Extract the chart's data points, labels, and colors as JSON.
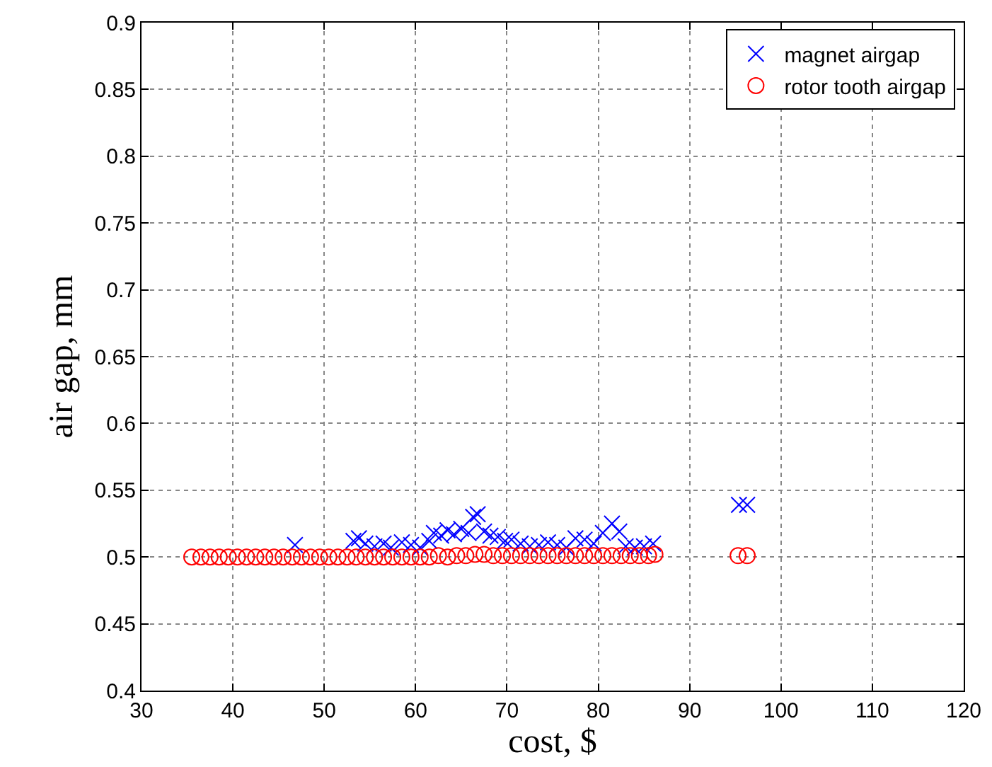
{
  "chart_data": {
    "type": "scatter",
    "xlabel": "cost, $",
    "ylabel": "air gap, mm",
    "xlim": [
      30,
      120
    ],
    "xticks": [
      30,
      40,
      50,
      60,
      70,
      80,
      90,
      100,
      110,
      120
    ],
    "ylim": [
      0.4,
      0.9
    ],
    "yticks": [
      0.4,
      0.45,
      0.5,
      0.55,
      0.6,
      0.65,
      0.7,
      0.75,
      0.8,
      0.85,
      0.9
    ],
    "grid": true,
    "legend": "top right",
    "series": [
      {
        "name": "magnet airgap",
        "color": "#0000ff",
        "marker": "cross",
        "x": [
          46.8,
          53.2,
          53.8,
          54.5,
          55.5,
          56.5,
          57.3,
          58.5,
          59.5,
          60.5,
          61.5,
          62.0,
          62.8,
          63.5,
          64.2,
          65.0,
          65.8,
          66.3,
          66.8,
          67.5,
          68.2,
          69.0,
          69.8,
          70.5,
          71.5,
          72.5,
          73.5,
          74.5,
          75.5,
          76.5,
          77.5,
          78.5,
          79.5,
          80.5,
          81.5,
          82.3,
          83.0,
          84.0,
          85.0,
          86.0,
          95.4,
          96.3
        ],
        "values": [
          0.509,
          0.512,
          0.514,
          0.51,
          0.508,
          0.51,
          0.507,
          0.511,
          0.509,
          0.507,
          0.512,
          0.518,
          0.516,
          0.52,
          0.517,
          0.521,
          0.518,
          0.53,
          0.532,
          0.519,
          0.516,
          0.515,
          0.512,
          0.513,
          0.51,
          0.508,
          0.509,
          0.511,
          0.509,
          0.507,
          0.514,
          0.513,
          0.51,
          0.518,
          0.525,
          0.519,
          0.508,
          0.507,
          0.508,
          0.51,
          0.539,
          0.539
        ]
      },
      {
        "name": "rotor tooth airgap",
        "color": "#ff0000",
        "marker": "circle",
        "x": [
          35.5,
          36.5,
          37.5,
          38.5,
          39.5,
          40.5,
          41.5,
          42.5,
          43.5,
          44.5,
          45.5,
          46.5,
          47.5,
          48.5,
          49.5,
          50.5,
          51.5,
          52.5,
          53.5,
          54.5,
          55.5,
          56.5,
          57.5,
          58.5,
          59.5,
          60.5,
          61.5,
          62.5,
          63.5,
          64.5,
          65.5,
          66.5,
          67.5,
          68.5,
          69.5,
          70.5,
          71.5,
          72.5,
          73.5,
          74.5,
          75.5,
          76.5,
          77.5,
          78.5,
          79.5,
          80.5,
          81.5,
          82.5,
          83.5,
          84.5,
          85.5,
          86.2,
          95.3,
          96.3
        ],
        "values": [
          0.5,
          0.5,
          0.5,
          0.5,
          0.5,
          0.5,
          0.5,
          0.5,
          0.5,
          0.5,
          0.5,
          0.5,
          0.5,
          0.5,
          0.5,
          0.5,
          0.5,
          0.5,
          0.5,
          0.5,
          0.5,
          0.5,
          0.5,
          0.5,
          0.5,
          0.5,
          0.5,
          0.501,
          0.5,
          0.501,
          0.501,
          0.502,
          0.502,
          0.501,
          0.501,
          0.501,
          0.501,
          0.501,
          0.501,
          0.501,
          0.501,
          0.501,
          0.501,
          0.501,
          0.501,
          0.501,
          0.501,
          0.501,
          0.501,
          0.501,
          0.501,
          0.502,
          0.501,
          0.501
        ]
      }
    ]
  }
}
